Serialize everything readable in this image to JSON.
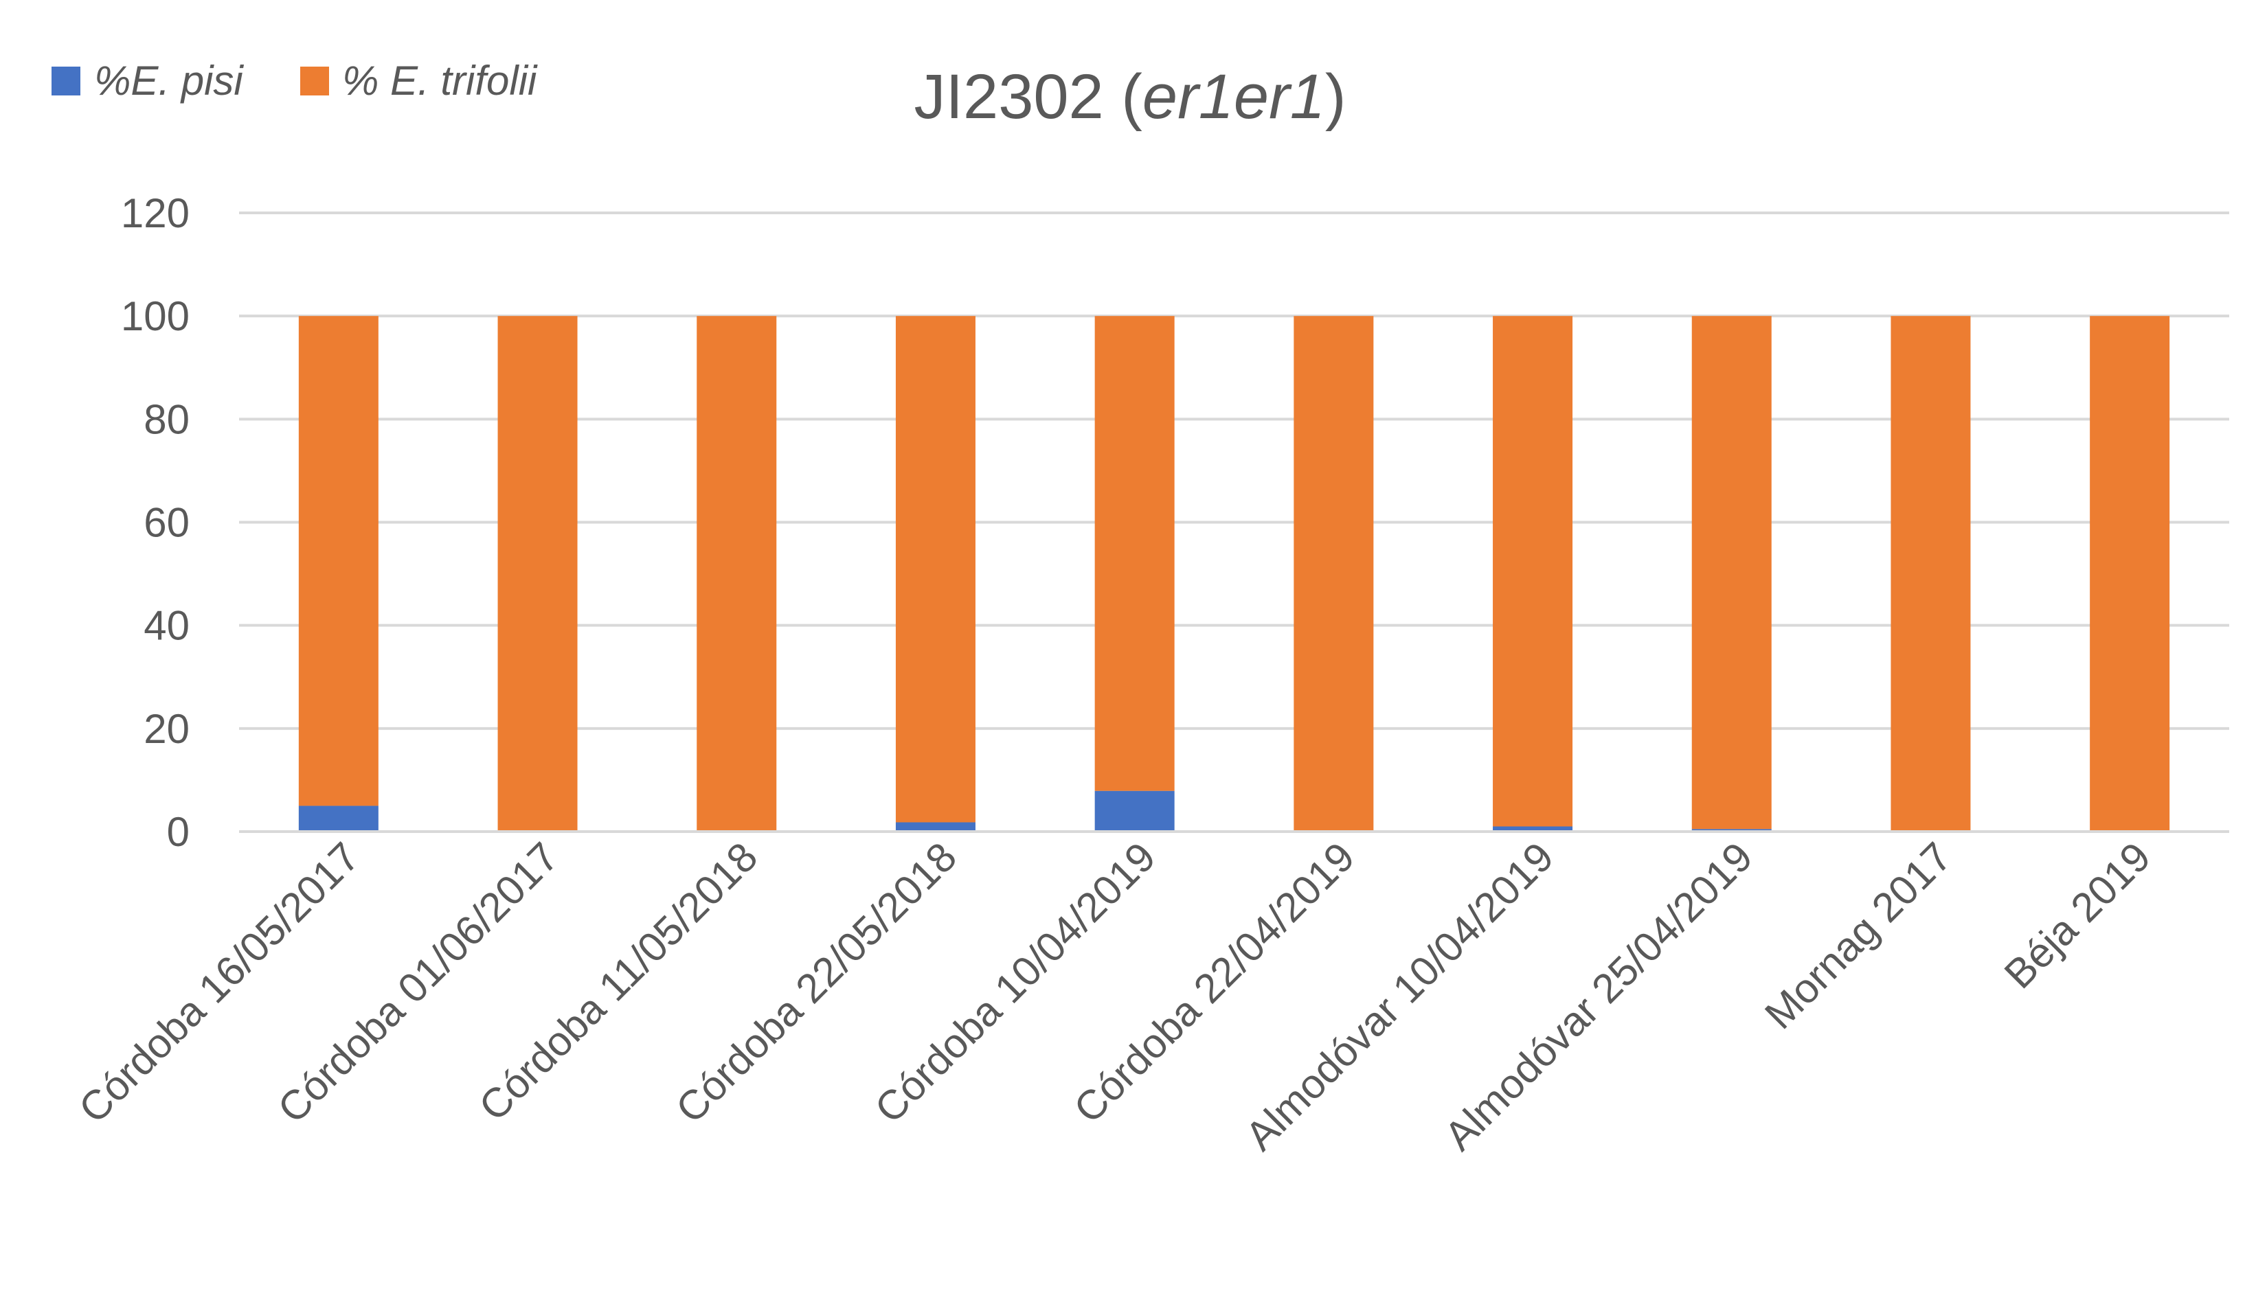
{
  "chart_data": {
    "type": "bar",
    "stacked": true,
    "title": {
      "main": "JI2302 (",
      "italic": "er1er1",
      "close": ")"
    },
    "xlabel": "",
    "ylabel": "",
    "ylim": [
      0,
      120
    ],
    "yticks": [
      "0",
      "20",
      "40",
      "60",
      "80",
      "100",
      "120"
    ],
    "grid": true,
    "legend_position": "top-left",
    "categories": [
      "Córdoba 16/05/2017",
      "Córdoba 01/06/2017",
      "Córdoba 11/05/2018",
      "Córdoba 22/05/2018",
      "Córdoba 10/04/2019",
      "Córdoba 22/04/2019",
      "Almodóvar 10/04/2019",
      "Almodóvar 25/04/2019",
      "Mornag 2017",
      "Béja 2019"
    ],
    "series": [
      {
        "name": "%E. pisi",
        "color": "#4472C4",
        "values": [
          5,
          0,
          0,
          1.8,
          7.9,
          0,
          1,
          0.5,
          0,
          0
        ]
      },
      {
        "name": "% E. trifolii",
        "color": "#ED7D31",
        "values": [
          95,
          100,
          100,
          98.2,
          92.1,
          100,
          99,
          99.5,
          100,
          100
        ]
      }
    ]
  }
}
